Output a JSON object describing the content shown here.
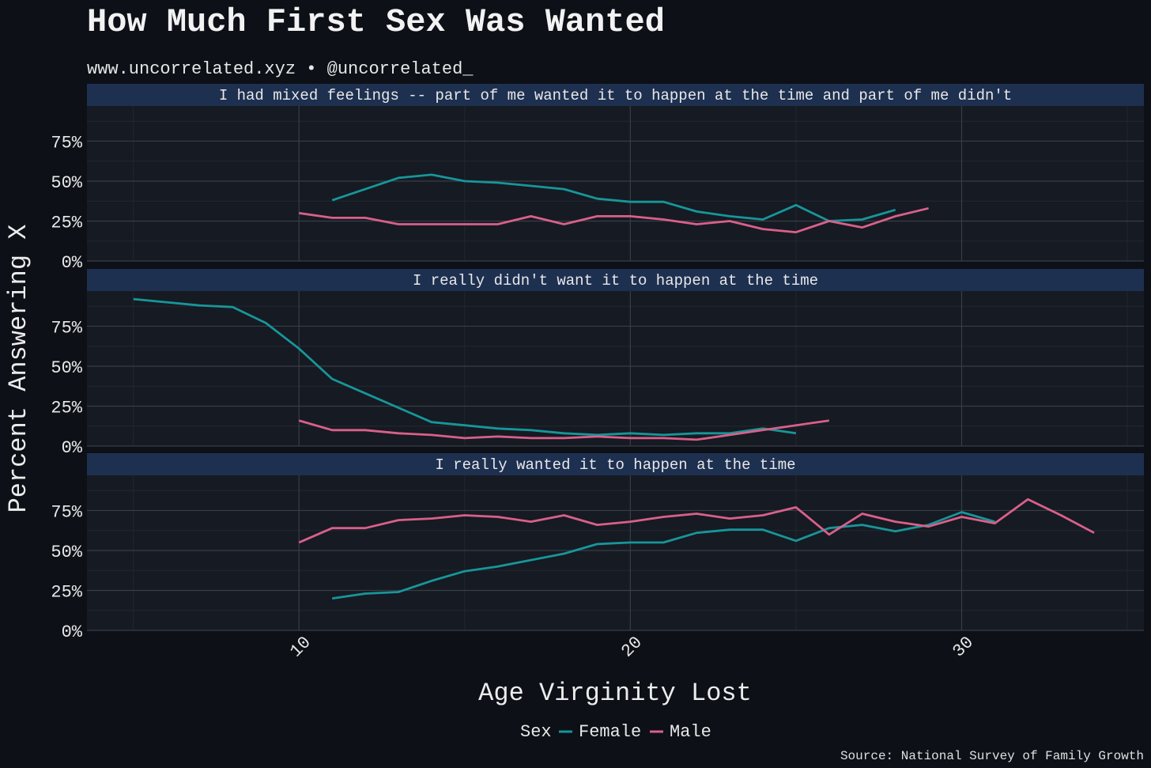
{
  "header": {
    "title": "How Much First Sex Was Wanted",
    "subtitle": "www.uncorrelated.xyz • @uncorrelated_"
  },
  "caption": "Source: National Survey of Family Growth",
  "legend": {
    "title": "Sex",
    "female_label": "Female",
    "male_label": "Male"
  },
  "colors": {
    "background": "#0d1017",
    "panel": "#161a22",
    "strip": "#1e3050",
    "grid_major": "#383d46",
    "grid_minor": "#222731",
    "female": "#17969a",
    "male": "#d9608a"
  },
  "chart_data": {
    "type": "line",
    "title": "How Much First Sex Was Wanted",
    "subtitle": "www.uncorrelated.xyz • @uncorrelated_",
    "xlabel": "Age Virginity Lost",
    "ylabel": "Percent Answering X",
    "xlim": [
      3.6,
      35.5
    ],
    "ylim": [
      0,
      0.97
    ],
    "x_ticks": [
      10,
      20,
      30
    ],
    "y_ticks": [
      0,
      0.25,
      0.5,
      0.75
    ],
    "y_tick_labels": [
      "0%",
      "25%",
      "50%",
      "75%"
    ],
    "grid": true,
    "legend_position": "bottom",
    "panels": [
      {
        "label": "I had mixed feelings -- part of me wanted it to happen at the time and part of me didn't",
        "series": [
          {
            "name": "Female",
            "x": [
              11,
              12,
              13,
              14,
              15,
              16,
              17,
              18,
              19,
              20,
              21,
              22,
              23,
              24,
              25,
              26,
              27,
              28
            ],
            "y": [
              0.38,
              0.45,
              0.52,
              0.54,
              0.5,
              0.49,
              0.47,
              0.45,
              0.39,
              0.37,
              0.37,
              0.31,
              0.28,
              0.26,
              0.35,
              0.25,
              0.26,
              0.32
            ]
          },
          {
            "name": "Male",
            "x": [
              10,
              11,
              12,
              13,
              14,
              15,
              16,
              17,
              18,
              19,
              20,
              21,
              22,
              23,
              24,
              25,
              26,
              27,
              28,
              29
            ],
            "y": [
              0.3,
              0.27,
              0.27,
              0.23,
              0.23,
              0.23,
              0.23,
              0.28,
              0.23,
              0.28,
              0.28,
              0.26,
              0.23,
              0.25,
              0.2,
              0.18,
              0.25,
              0.21,
              0.28,
              0.33
            ]
          }
        ]
      },
      {
        "label": "I really didn't want it to happen at the time",
        "series": [
          {
            "name": "Female",
            "x": [
              5,
              6,
              7,
              8,
              9,
              10,
              11,
              12,
              13,
              14,
              15,
              16,
              17,
              18,
              19,
              20,
              21,
              22,
              23,
              24,
              25
            ],
            "y": [
              0.92,
              0.9,
              0.88,
              0.87,
              0.77,
              0.61,
              0.42,
              0.33,
              0.24,
              0.15,
              0.13,
              0.11,
              0.1,
              0.08,
              0.07,
              0.08,
              0.07,
              0.08,
              0.08,
              0.11,
              0.08
            ]
          },
          {
            "name": "Male",
            "x": [
              10,
              11,
              12,
              13,
              14,
              15,
              16,
              17,
              18,
              19,
              20,
              21,
              22,
              23,
              24,
              25,
              26
            ],
            "y": [
              0.16,
              0.1,
              0.1,
              0.08,
              0.07,
              0.05,
              0.06,
              0.05,
              0.05,
              0.06,
              0.05,
              0.05,
              0.04,
              0.07,
              0.1,
              0.13,
              0.16
            ]
          }
        ]
      },
      {
        "label": "I really wanted it to happen at the time",
        "series": [
          {
            "name": "Female",
            "x": [
              11,
              12,
              13,
              14,
              15,
              16,
              17,
              18,
              19,
              20,
              21,
              22,
              23,
              24,
              25,
              26,
              27,
              28,
              29,
              30,
              31
            ],
            "y": [
              0.2,
              0.23,
              0.24,
              0.31,
              0.37,
              0.4,
              0.44,
              0.48,
              0.54,
              0.55,
              0.55,
              0.61,
              0.63,
              0.63,
              0.56,
              0.64,
              0.66,
              0.62,
              0.66,
              0.74,
              0.68
            ]
          },
          {
            "name": "Male",
            "x": [
              10,
              11,
              12,
              13,
              14,
              15,
              16,
              17,
              18,
              19,
              20,
              21,
              22,
              23,
              24,
              25,
              26,
              27,
              28,
              29,
              30,
              31,
              32,
              33,
              34
            ],
            "y": [
              0.55,
              0.64,
              0.64,
              0.69,
              0.7,
              0.72,
              0.71,
              0.68,
              0.72,
              0.66,
              0.68,
              0.71,
              0.73,
              0.7,
              0.72,
              0.77,
              0.6,
              0.73,
              0.68,
              0.65,
              0.71,
              0.67,
              0.82,
              0.72,
              0.61
            ]
          }
        ]
      }
    ]
  }
}
